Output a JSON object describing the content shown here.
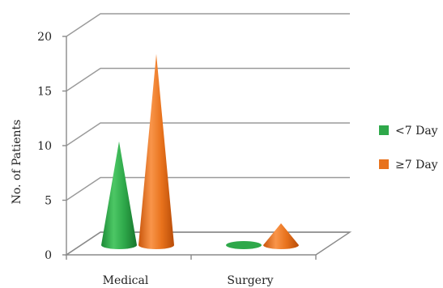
{
  "chart_data": {
    "type": "bar",
    "style": "3d-cone",
    "categories": [
      "Medical",
      "Surgery"
    ],
    "series": [
      {
        "name": "<7 Day",
        "values": [
          9.5,
          0
        ],
        "color": "#2ea84a"
      },
      {
        "name": "≥7 Day",
        "values": [
          17.5,
          2
        ],
        "color": "#e8721c"
      }
    ],
    "ylabel": "No. of Patients",
    "xlabel": "",
    "ylim": [
      0,
      20
    ],
    "yticks": [
      0,
      5,
      10,
      15,
      20
    ],
    "grid": true,
    "legend": "right"
  }
}
